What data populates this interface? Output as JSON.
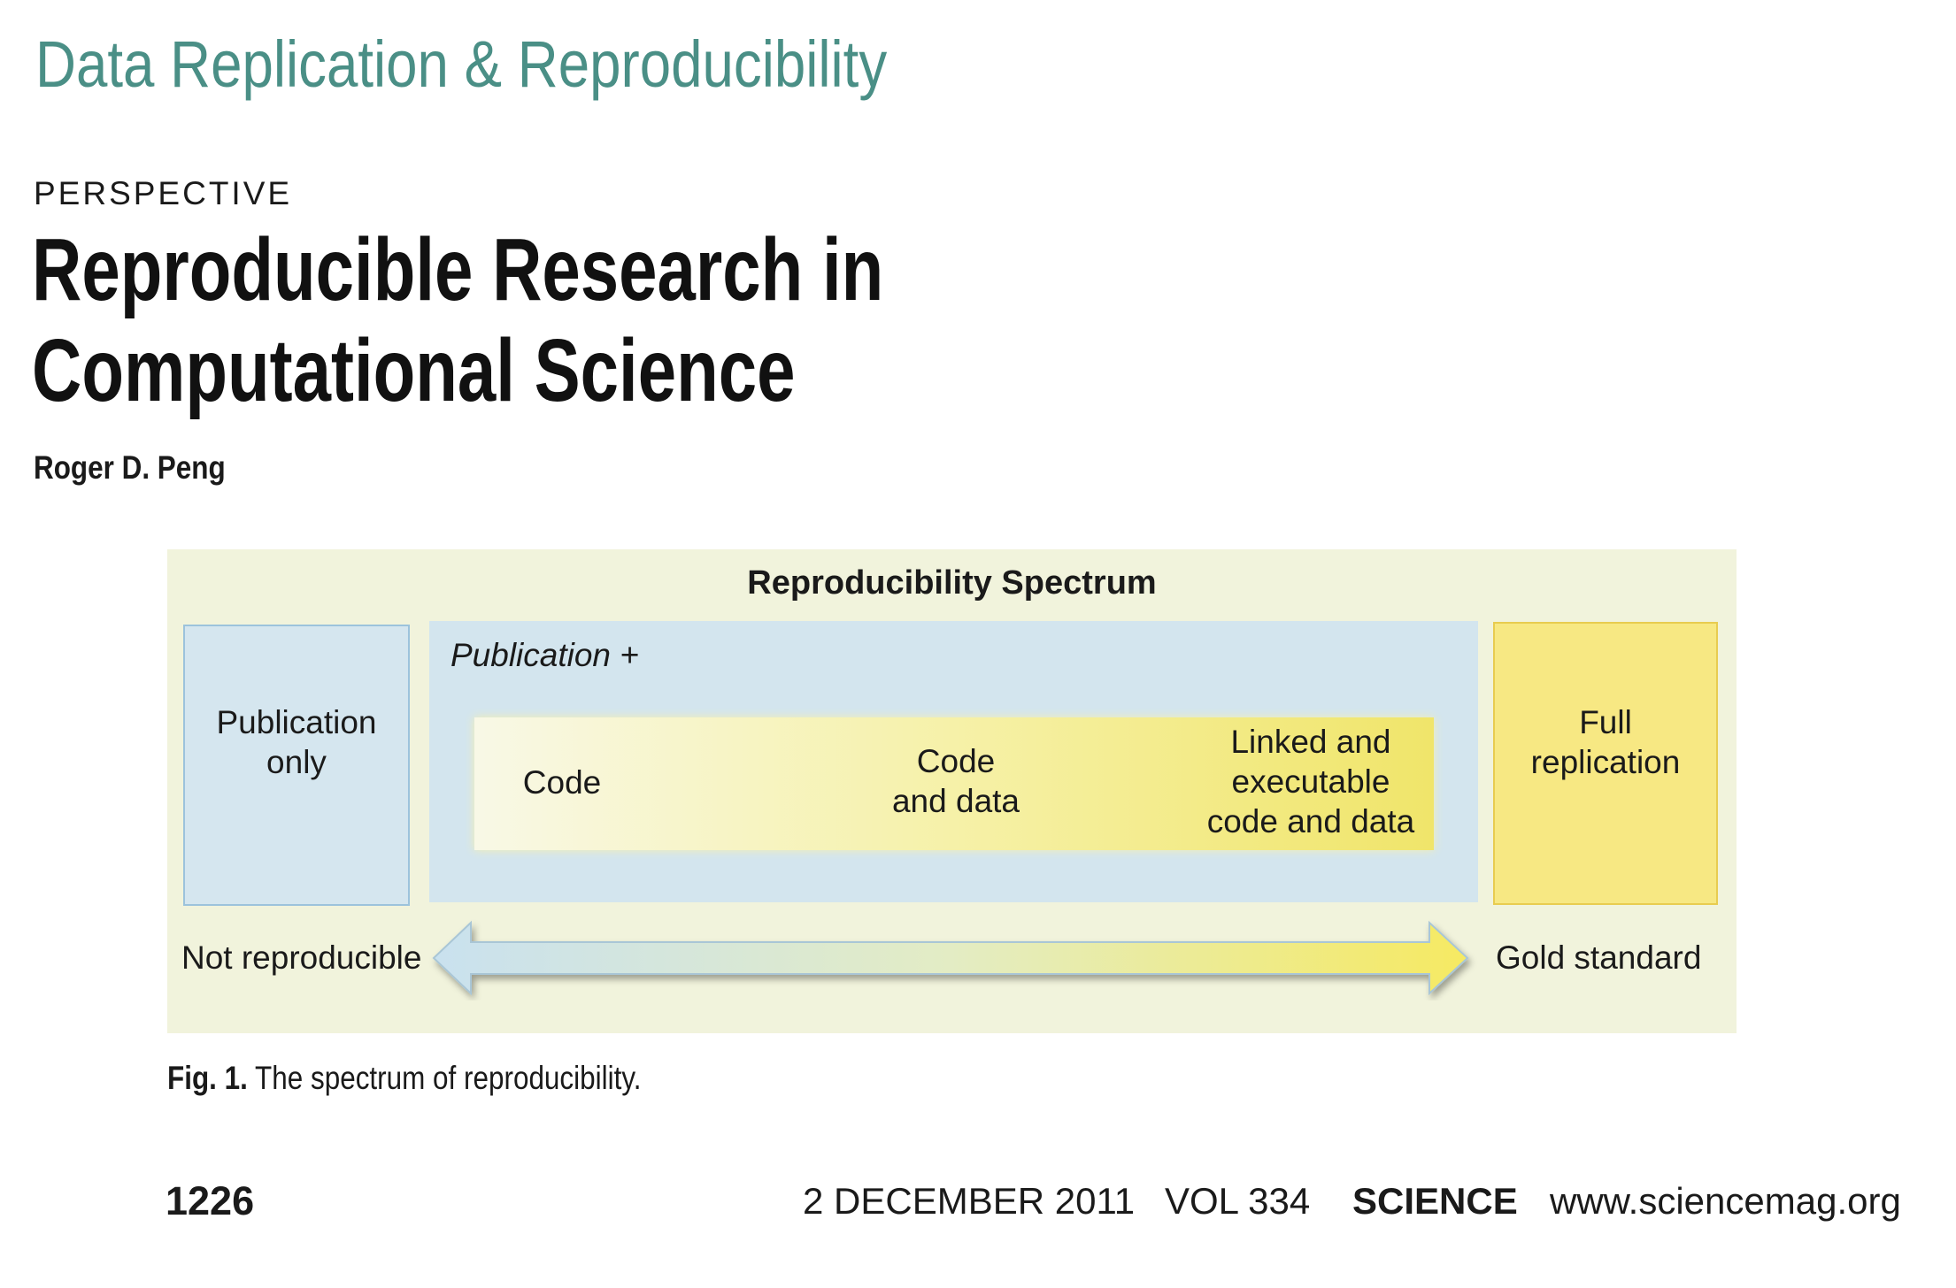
{
  "header": {
    "section": "Data Replication & Reproducibility",
    "label": "PERSPECTIVE",
    "title_lines": [
      "Reproducible Research in",
      "Computational Science"
    ],
    "author": "Roger D. Peng"
  },
  "figure": {
    "title": "Reproducibility Spectrum",
    "left_box": [
      "Publication",
      "only"
    ],
    "middle_label": "Publication +",
    "stages": [
      [
        "Code"
      ],
      [
        "Code",
        "and data"
      ],
      [
        "Linked and",
        "executable",
        "code and data"
      ]
    ],
    "right_box": [
      "Full",
      "replication"
    ],
    "left_end": "Not reproducible",
    "right_end": "Gold standard",
    "caption_label": "Fig. 1.",
    "caption": "The spectrum of reproducibility."
  },
  "footer": {
    "page": "1226",
    "date": "2 DECEMBER 2011",
    "volume": "VOL 334",
    "journal": "SCIENCE",
    "url": "www.sciencemag.org"
  }
}
